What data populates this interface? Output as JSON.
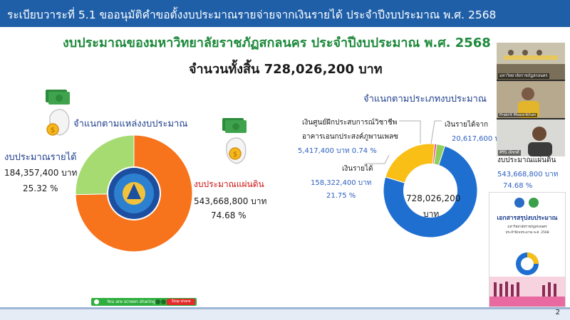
{
  "slide": {
    "title": "ระเบียบวาระที่ 5.1 ขออนุมัติคำขอตั้งงบประมาณรายจ่ายจากเงินรายได้ ประจำปีงบประมาณ พ.ศ. 2568",
    "headline": "งบประมาณของมหาวิทยาลัยราชภัฏสกลนคร ประจำปีงบประมาณ พ.ศ. 2568",
    "total": "จำนวนทั้งสิ้น 728,026,200 บาท",
    "page_number": "2"
  },
  "left_chart": {
    "heading": "จำแนกตามแหล่งงบประมาณ",
    "income_label": "งบประมาณรายได้",
    "income_amount": "184,357,400 บาท",
    "income_percent": "25.32 %",
    "gov_label": "งบประมาณแผ่นดิน",
    "gov_amount": "543,668,800 บาท",
    "gov_percent": "74.68 %"
  },
  "right_chart": {
    "heading": "จำแนกตามประเภทงบประมาณ",
    "center_value": "728,026,200",
    "center_unit": "บาท",
    "training_label_1": "เงินศูนย์ฝึกประสบการณ์วิชาชีพ",
    "training_label_2": "อาคารเอนกประสงค์ภูพานเพลซ",
    "training_values": "5,417,400 บาท 0.74 %",
    "income_label": "เงินรายได้",
    "income_amount": "158,322,400 บาท",
    "income_percent": "21.75 %",
    "income2_label": "เงินรายได้จาก",
    "income2_amount": "20,617,600 บ",
    "gov_label": "งบประมาณแผ่นดิน",
    "gov_amount": "543,668,800 บาท",
    "gov_percent": "74.68 %"
  },
  "chart_data": [
    {
      "type": "pie",
      "title": "จำแนกตามแหล่งงบประมาณ",
      "categories": [
        "งบประมาณแผ่นดิน",
        "งบประมาณรายได้"
      ],
      "values": [
        543668800,
        184357400
      ],
      "percent": [
        74.68,
        25.32
      ],
      "colors": [
        "#f7731c",
        "#a6db72"
      ]
    },
    {
      "type": "pie",
      "title": "จำแนกตามประเภทงบประมาณ",
      "categories": [
        "งบประมาณแผ่นดิน",
        "เงินรายได้",
        "เงินศูนย์ฝึกประสบการณ์วิชาชีพ อาคารเอนกประสงค์ภูพานเพลซ",
        "เงินรายได้จาก"
      ],
      "values": [
        543668800,
        158322400,
        5417400,
        20617600
      ],
      "percent": [
        74.68,
        21.75,
        0.74
      ],
      "colors": [
        "#1f6fd1",
        "#f9bf16",
        "#e83e8c",
        "#8fcf5a"
      ]
    }
  ],
  "zoom": {
    "sharing_text": "You are screen sharing",
    "stop_label": "Stop share",
    "participants": [
      {
        "name": "มหาวิทยาลัยราชภัฏสกลนคร"
      },
      {
        "name": "Prakrit Meesrikhan"
      },
      {
        "name": "ศิรินิ เพ็ชรดี"
      }
    ]
  },
  "booklet": {
    "title": "เอกสารสรุปงบประมาณ",
    "line1": "มหาวิทยาลัยราชภัฏสกลนคร",
    "line2": "ประจำปีงบประมาณ พ.ศ. 2568"
  },
  "colors": {
    "title_bar": "#1f5fa8",
    "headline": "#1e8a3c",
    "heading_blue": "#1f3e8c"
  }
}
